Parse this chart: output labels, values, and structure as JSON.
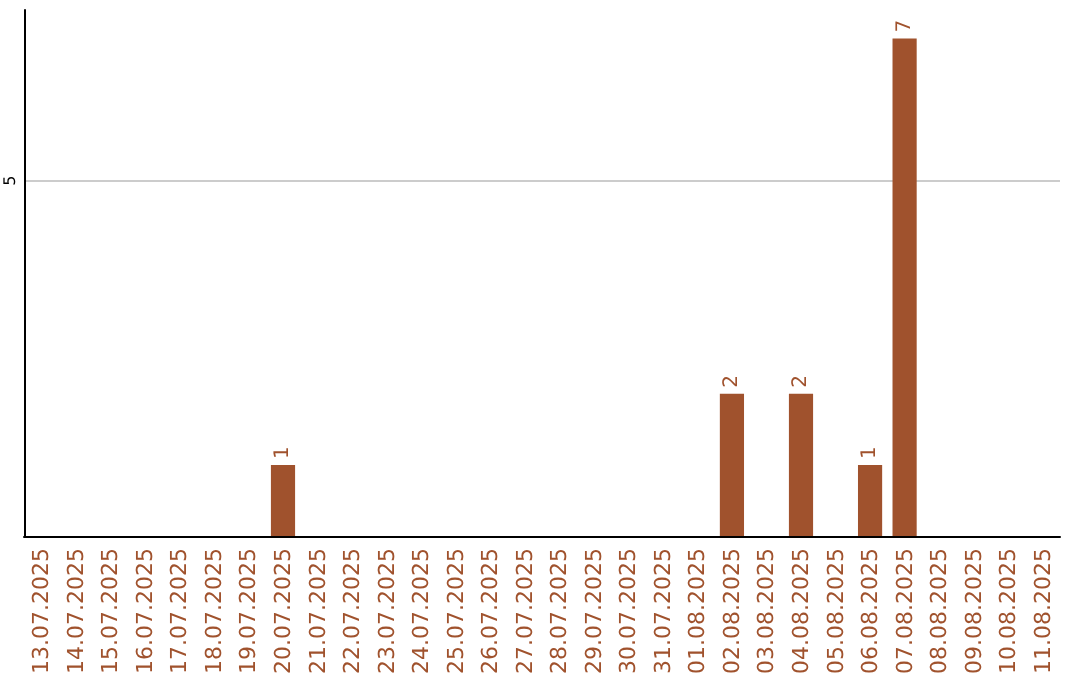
{
  "chart_data": {
    "type": "bar",
    "categories": [
      "13.07.2025",
      "14.07.2025",
      "15.07.2025",
      "16.07.2025",
      "17.07.2025",
      "18.07.2025",
      "19.07.2025",
      "20.07.2025",
      "21.07.2025",
      "22.07.2025",
      "23.07.2025",
      "24.07.2025",
      "25.07.2025",
      "26.07.2025",
      "27.07.2025",
      "28.07.2025",
      "29.07.2025",
      "30.07.2025",
      "31.07.2025",
      "01.08.2025",
      "02.08.2025",
      "03.08.2025",
      "04.08.2025",
      "05.08.2025",
      "06.08.2025",
      "07.08.2025",
      "08.08.2025",
      "09.08.2025",
      "10.08.2025",
      "11.08.2025"
    ],
    "values": [
      0,
      0,
      0,
      0,
      0,
      0,
      0,
      1,
      0,
      0,
      0,
      0,
      0,
      0,
      0,
      0,
      0,
      0,
      0,
      0,
      2,
      0,
      2,
      0,
      1,
      7,
      0,
      0,
      0,
      0
    ],
    "value_labels": [
      null,
      null,
      null,
      null,
      null,
      null,
      null,
      "1",
      null,
      null,
      null,
      null,
      null,
      null,
      null,
      null,
      null,
      null,
      null,
      null,
      "2",
      null,
      "2",
      null,
      "1",
      "7",
      null,
      null,
      null,
      null
    ],
    "color": "#a0522d",
    "ylim": [
      0,
      7.4
    ],
    "yticks": [
      5
    ],
    "grid": "y"
  }
}
